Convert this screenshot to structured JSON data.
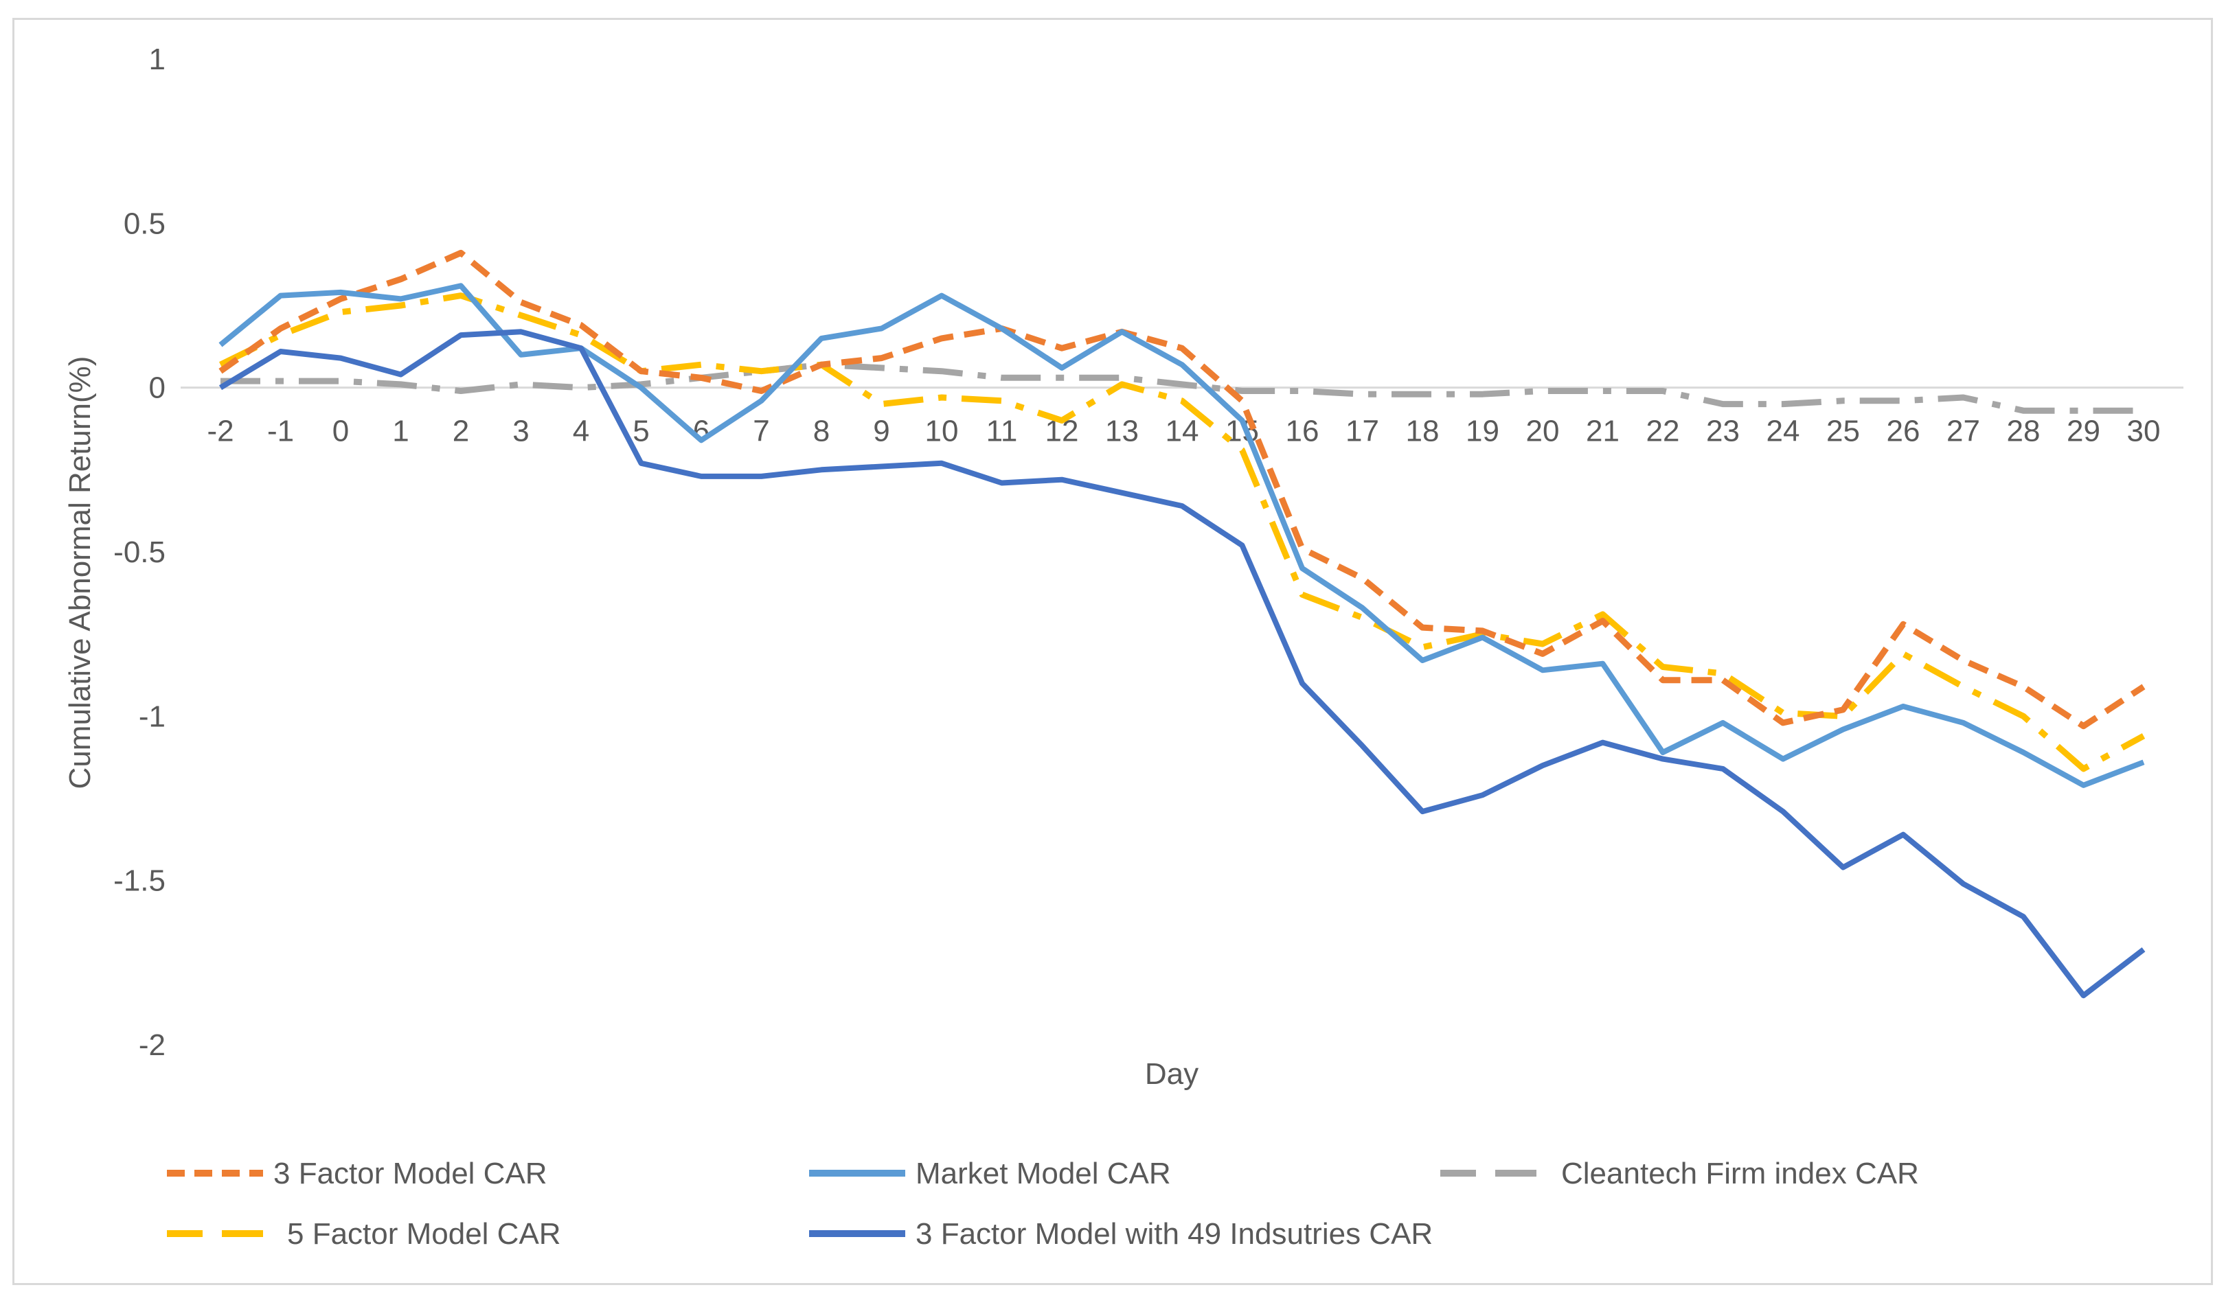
{
  "chart_data": {
    "type": "line",
    "title": "",
    "xlabel": "Day",
    "ylabel": "Cumulative Abnormal Return(%)",
    "ylim": [
      -2,
      1
    ],
    "yticks": [
      "1",
      "0.5",
      "0",
      "-0.5",
      "-1",
      "-1.5",
      "-2"
    ],
    "grid": false,
    "legend_position": "bottom",
    "categories": [
      "-2",
      "-1",
      "0",
      "1",
      "2",
      "3",
      "4",
      "5",
      "6",
      "7",
      "8",
      "9",
      "10",
      "11",
      "12",
      "13",
      "14",
      "15",
      "16",
      "17",
      "18",
      "19",
      "20",
      "21",
      "22",
      "23",
      "24",
      "25",
      "26",
      "27",
      "28",
      "29",
      "30"
    ],
    "series": [
      {
        "name": "3 Factor Model CAR",
        "color": "#ed7d31",
        "style": "dash",
        "values": [
          0.05,
          0.18,
          0.27,
          0.33,
          0.41,
          0.26,
          0.19,
          0.05,
          0.03,
          -0.01,
          0.07,
          0.09,
          0.15,
          0.18,
          0.12,
          0.17,
          0.12,
          -0.04,
          -0.49,
          -0.58,
          -0.73,
          -0.74,
          -0.81,
          -0.71,
          -0.89,
          -0.89,
          -1.02,
          -0.98,
          -0.72,
          -0.83,
          -0.91,
          -1.03,
          -0.91
        ]
      },
      {
        "name": "Market Model CAR",
        "color": "#5b9bd5",
        "style": "solid",
        "values": [
          0.13,
          0.28,
          0.29,
          0.27,
          0.31,
          0.1,
          0.12,
          0.0,
          -0.16,
          -0.04,
          0.15,
          0.18,
          0.28,
          0.18,
          0.06,
          0.17,
          0.07,
          -0.1,
          -0.55,
          -0.67,
          -0.83,
          -0.76,
          -0.86,
          -0.84,
          -1.11,
          -1.02,
          -1.13,
          -1.04,
          -0.97,
          -1.02,
          -1.11,
          -1.21,
          -1.14
        ]
      },
      {
        "name": "Cleantech Firm index CAR",
        "color": "#a5a5a5",
        "style": "dashdot",
        "values": [
          0.02,
          0.02,
          0.02,
          0.01,
          -0.01,
          0.01,
          0.0,
          0.01,
          0.03,
          0.05,
          0.07,
          0.06,
          0.05,
          0.03,
          0.03,
          0.03,
          0.01,
          -0.01,
          -0.01,
          -0.02,
          -0.02,
          -0.02,
          -0.01,
          -0.01,
          -0.01,
          -0.05,
          -0.05,
          -0.04,
          -0.04,
          -0.03,
          -0.07,
          -0.07,
          -0.07
        ]
      },
      {
        "name": "5 Factor Model CAR",
        "color": "#ffc000",
        "style": "dashdot",
        "values": [
          0.07,
          0.16,
          0.23,
          0.25,
          0.28,
          0.22,
          0.16,
          0.05,
          0.07,
          0.05,
          0.07,
          -0.05,
          -0.03,
          -0.04,
          -0.1,
          0.01,
          -0.04,
          -0.19,
          -0.63,
          -0.7,
          -0.79,
          -0.75,
          -0.78,
          -0.69,
          -0.85,
          -0.87,
          -0.99,
          -1.0,
          -0.81,
          -0.91,
          -1.0,
          -1.16,
          -1.06
        ]
      },
      {
        "name": "3 Factor Model with 49 Indsutries CAR",
        "color": "#4472c4",
        "style": "solid",
        "values": [
          0.0,
          0.11,
          0.09,
          0.04,
          0.16,
          0.17,
          0.12,
          -0.23,
          -0.27,
          -0.27,
          -0.25,
          -0.24,
          -0.23,
          -0.29,
          -0.28,
          -0.32,
          -0.36,
          -0.48,
          -0.9,
          -1.09,
          -1.29,
          -1.24,
          -1.15,
          -1.08,
          -1.13,
          -1.16,
          -1.29,
          -1.46,
          -1.36,
          -1.51,
          -1.61,
          -1.85,
          -1.71
        ]
      }
    ]
  }
}
